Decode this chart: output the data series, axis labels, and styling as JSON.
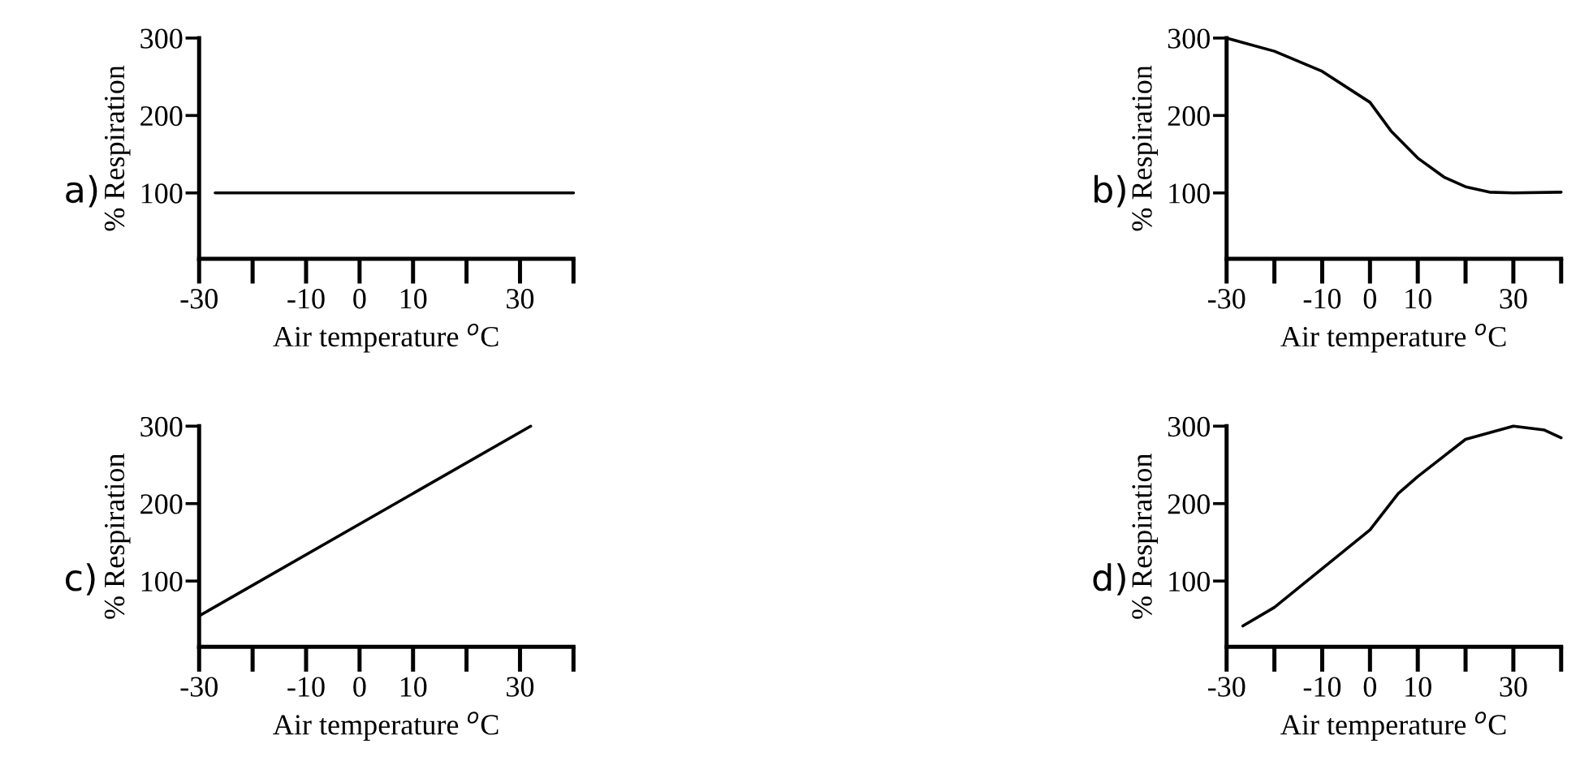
{
  "chart_data": [
    {
      "type": "line",
      "xlabel": "Air temperature $^{o}$C",
      "ylabel": "% Respiration",
      "annotations": [
        "a)"
      ],
      "xlim": [
        -30,
        40
      ],
      "ylim": [
        15,
        300
      ],
      "xticks": [
        -30,
        {
          "value": -20,
          "label": null
        },
        -10,
        0,
        10,
        {
          "value": 20,
          "label": null
        },
        30,
        {
          "value": 40,
          "label": null
        }
      ],
      "yticks": [
        100,
        200,
        300
      ],
      "series": [
        {
          "color": "#000000",
          "x": [
            -27,
            40
          ],
          "values": [
            100,
            100
          ]
        }
      ]
    },
    {
      "type": "line",
      "xlabel": "Air temperature $^{o}$C",
      "ylabel": "% Respiration",
      "annotations": [
        "b)"
      ],
      "xlim": [
        -30,
        40
      ],
      "ylim": [
        15,
        300
      ],
      "xticks": [
        -30,
        {
          "value": -20,
          "label": null
        },
        -10,
        0,
        10,
        {
          "value": 20,
          "label": null
        },
        30,
        {
          "value": 40,
          "label": null
        }
      ],
      "yticks": [
        100,
        200,
        300
      ],
      "series": [
        {
          "color": "#000000",
          "x": [
            -30,
            -20,
            -10,
            0,
            4.4,
            10,
            15.6,
            20,
            25,
            30,
            40
          ],
          "values": [
            300,
            283,
            257,
            217,
            180,
            145,
            120,
            108,
            101,
            100,
            101
          ]
        }
      ]
    },
    {
      "type": "line",
      "xlabel": "Air temperature $^{o}$C",
      "ylabel": "% Respiration",
      "annotations": [
        "c)"
      ],
      "xlim": [
        -30,
        40
      ],
      "ylim": [
        15,
        300
      ],
      "xticks": [
        -30,
        {
          "value": -20,
          "label": null
        },
        -10,
        0,
        10,
        {
          "value": 20,
          "label": null
        },
        30,
        {
          "value": 40,
          "label": null
        }
      ],
      "yticks": [
        100,
        200,
        300
      ],
      "series": [
        {
          "color": "#000000",
          "x": [
            -30,
            32
          ],
          "values": [
            55,
            300
          ]
        }
      ]
    },
    {
      "type": "line",
      "xlabel": "Air temperature $^{o}$C",
      "ylabel": "% Respiration",
      "annotations": [
        "d)"
      ],
      "xlim": [
        -30,
        40
      ],
      "ylim": [
        15,
        300
      ],
      "xticks": [
        -30,
        {
          "value": -20,
          "label": null
        },
        -10,
        0,
        10,
        {
          "value": 20,
          "label": null
        },
        30,
        {
          "value": 40,
          "label": null
        }
      ],
      "yticks": [
        100,
        200,
        300
      ],
      "series": [
        {
          "color": "#000000",
          "x": [
            -26.6,
            -20,
            -10,
            0,
            5.9,
            10,
            20,
            30,
            36.5,
            40
          ],
          "values": [
            42,
            66,
            116,
            166,
            213,
            235,
            283,
            300,
            295,
            285
          ]
        }
      ]
    }
  ]
}
